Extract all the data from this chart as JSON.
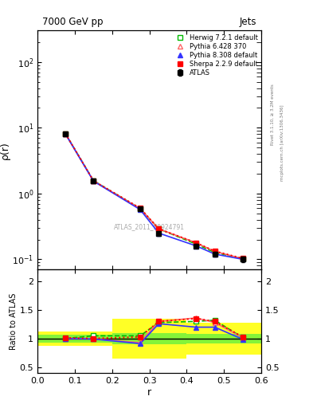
{
  "title_left": "7000 GeV pp",
  "title_right": "Jets",
  "ylabel_main": "ρ(r)",
  "ylabel_ratio": "Ratio to ATLAS",
  "xlabel": "r",
  "right_label_top": "Rivet 3.1.10, ≥ 3.2M events",
  "right_label_bot": "mcplots.cern.ch [arXiv:1306.3436]",
  "watermark": "ATLAS_2011_S8924791",
  "x_centers": [
    0.075,
    0.15,
    0.275,
    0.325,
    0.425,
    0.475,
    0.55
  ],
  "atlas_y": [
    8.0,
    1.55,
    0.58,
    0.25,
    0.16,
    0.12,
    0.1
  ],
  "atlas_yerr": [
    0.3,
    0.05,
    0.02,
    0.02,
    0.01,
    0.01,
    0.01
  ],
  "herwig_y": [
    8.1,
    1.57,
    0.59,
    0.29,
    0.17,
    0.127,
    0.102
  ],
  "pythia6_y": [
    8.05,
    1.55,
    0.59,
    0.29,
    0.178,
    0.132,
    0.102
  ],
  "pythia8_y": [
    8.0,
    1.54,
    0.57,
    0.25,
    0.16,
    0.12,
    0.1
  ],
  "sherpa_y": [
    8.12,
    1.56,
    0.6,
    0.29,
    0.178,
    0.133,
    0.103
  ],
  "ratio_herwig": [
    1.005,
    1.05,
    1.05,
    1.28,
    1.3,
    1.32,
    1.02
  ],
  "ratio_pythia6": [
    1.005,
    1.0,
    0.93,
    1.3,
    1.36,
    1.28,
    1.02
  ],
  "ratio_pythia8": [
    1.0,
    0.995,
    0.915,
    1.26,
    1.2,
    1.2,
    0.99
  ],
  "ratio_sherpa": [
    1.015,
    1.005,
    1.03,
    1.3,
    1.35,
    1.3,
    1.03
  ],
  "band_yellow_edges": [
    0.0,
    0.1,
    0.2,
    0.3,
    0.4,
    0.5,
    0.6
  ],
  "band_yellow_low": [
    0.88,
    0.88,
    0.65,
    0.65,
    0.72,
    0.72,
    0.72
  ],
  "band_yellow_high": [
    1.12,
    1.12,
    1.35,
    1.35,
    1.28,
    1.28,
    1.28
  ],
  "band_green_edges": [
    0.0,
    0.1,
    0.2,
    0.3,
    0.4,
    0.5,
    0.6
  ],
  "band_green_low": [
    0.935,
    0.935,
    0.9,
    0.9,
    0.92,
    0.92,
    0.92
  ],
  "band_green_high": [
    1.065,
    1.065,
    1.1,
    1.1,
    1.08,
    1.08,
    1.08
  ],
  "color_atlas": "#000000",
  "color_herwig": "#00bb00",
  "color_pythia6": "#ff6666",
  "color_pythia8": "#3333ff",
  "color_sherpa": "#ff0000",
  "xlim": [
    0.0,
    0.6
  ],
  "ylim_main": [
    0.07,
    300
  ],
  "ylim_ratio": [
    0.4,
    2.2
  ],
  "ratio_yticks": [
    0.5,
    1.0,
    1.5,
    2.0
  ],
  "ratio_yticklabels": [
    "0.5",
    "1",
    "1.5",
    "2"
  ]
}
